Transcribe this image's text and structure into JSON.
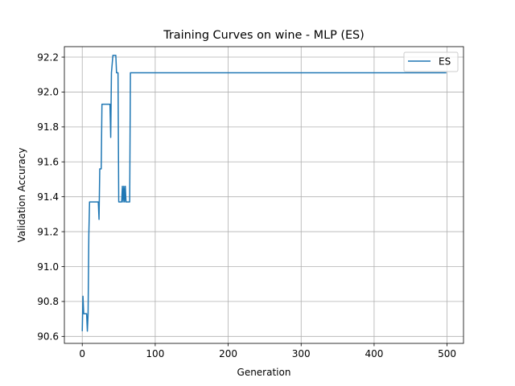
{
  "chart_data": {
    "type": "line",
    "title": "Training Curves on wine - MLP (ES)",
    "xlabel": "Generation",
    "ylabel": "Validation Accuracy",
    "xlim": [
      -24.5,
      522.5
    ],
    "ylim": [
      90.56,
      92.26
    ],
    "xticks": [
      0,
      100,
      200,
      300,
      400,
      500
    ],
    "xtick_labels": [
      "0",
      "100",
      "200",
      "300",
      "400",
      "500"
    ],
    "yticks": [
      90.6,
      90.8,
      91.0,
      91.2,
      91.4,
      91.6,
      91.8,
      92.0,
      92.2
    ],
    "ytick_labels": [
      "90.6",
      "90.8",
      "91.0",
      "91.2",
      "91.4",
      "91.6",
      "91.8",
      "92.0",
      "92.2"
    ],
    "grid": true,
    "legend": "top-right",
    "series": [
      {
        "name": "ES",
        "color": "#1f77b4",
        "points": [
          [
            0,
            90.63
          ],
          [
            1,
            90.83
          ],
          [
            2,
            90.73
          ],
          [
            6,
            90.73
          ],
          [
            7,
            90.63
          ],
          [
            8,
            90.73
          ],
          [
            9,
            91.18
          ],
          [
            10,
            91.37
          ],
          [
            22,
            91.37
          ],
          [
            23,
            91.27
          ],
          [
            24,
            91.56
          ],
          [
            26,
            91.56
          ],
          [
            27,
            91.93
          ],
          [
            38,
            91.93
          ],
          [
            39,
            91.74
          ],
          [
            40,
            92.11
          ],
          [
            42,
            92.21
          ],
          [
            46,
            92.21
          ],
          [
            47,
            92.11
          ],
          [
            49,
            92.11
          ],
          [
            50,
            91.37
          ],
          [
            54,
            91.37
          ],
          [
            55,
            91.46
          ],
          [
            56,
            91.37
          ],
          [
            57,
            91.46
          ],
          [
            58,
            91.37
          ],
          [
            59,
            91.46
          ],
          [
            60,
            91.37
          ],
          [
            65,
            91.37
          ],
          [
            66,
            92.11
          ],
          [
            499,
            92.11
          ]
        ]
      }
    ]
  }
}
